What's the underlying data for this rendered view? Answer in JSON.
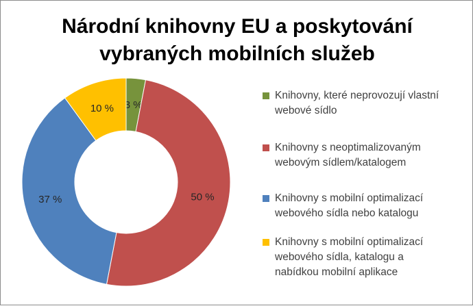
{
  "chart_data": {
    "type": "pie",
    "title": "Národní knihovny EU a poskytování\nvybraných mobilních služeb",
    "donut": true,
    "start": "top",
    "direction": "clockwise",
    "legend_position": "right",
    "series": [
      {
        "name": "Knihovny, které neprovozují vlastní\nwebové sídlo",
        "value": 3,
        "label": "3 %",
        "color": "#77933C"
      },
      {
        "name": "Knihovny s neoptimalizovaným\nwebovým sídlem/katalogem",
        "value": 50,
        "label": "50 %",
        "color": "#C0504D"
      },
      {
        "name": "Knihovny s mobilní optimalizací\nwebového sídla nebo katalogu",
        "value": 37,
        "label": "37 %",
        "color": "#4F81BD"
      },
      {
        "name": "Knihovny s mobilní optimalizací\nwebového sídla, katalogu a\nnabídkou mobilní aplikace",
        "value": 10,
        "label": "10 %",
        "color": "#FFC000"
      }
    ]
  }
}
